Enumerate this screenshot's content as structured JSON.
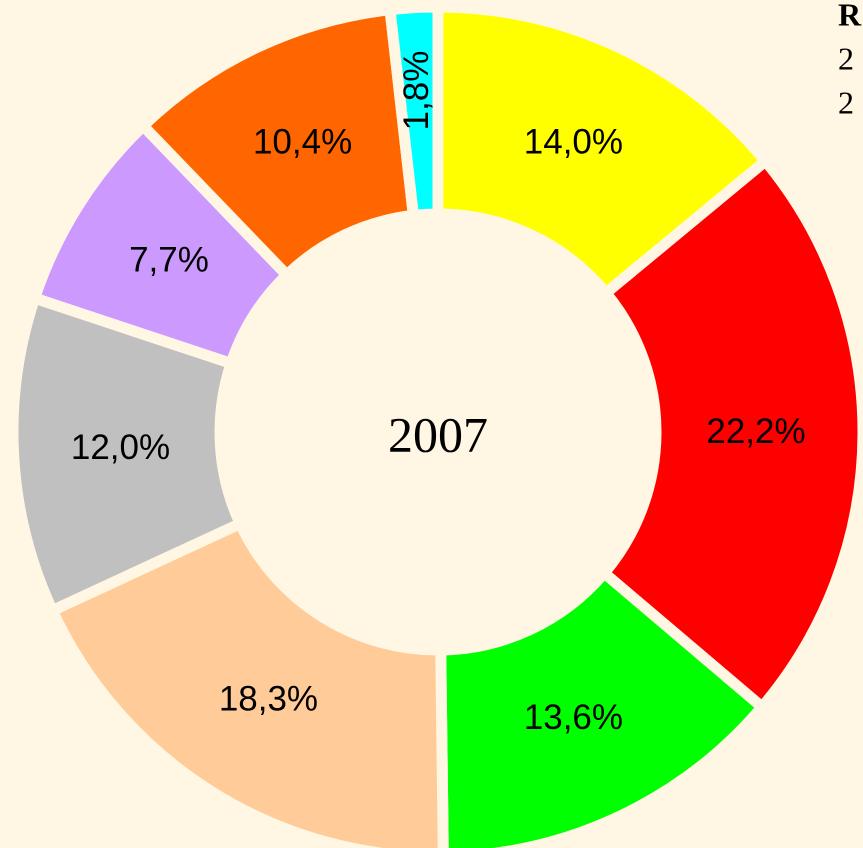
{
  "chart_data": {
    "type": "donut",
    "center_label": "2007",
    "edge_texts": [
      "R",
      "2",
      "2"
    ],
    "values": [
      14.0,
      22.2,
      13.6,
      18.3,
      12.0,
      7.7,
      10.4,
      1.8
    ],
    "value_labels": [
      "14,0%",
      "22,2%",
      "13,6%",
      "18,3%",
      "12,0%",
      "7,7%",
      "10,4%",
      "1,8%"
    ],
    "colors": [
      "#ffff00",
      "#ff0000",
      "#00ff00",
      "#ffcc99",
      "#c0c0c0",
      "#cc99ff",
      "#ff6600",
      "#00ffff"
    ]
  }
}
